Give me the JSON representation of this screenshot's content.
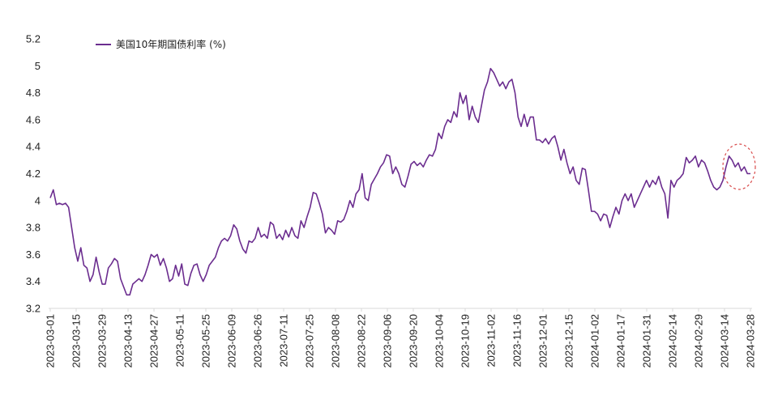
{
  "chart_data": {
    "type": "line",
    "title": "",
    "xlabel": "",
    "ylabel": "",
    "ylim": [
      3.2,
      5.2
    ],
    "y_ticks": [
      "5.2",
      "5",
      "4.8",
      "4.6",
      "4.4",
      "4.2",
      "4",
      "3.8",
      "3.6",
      "3.4",
      "3.2"
    ],
    "y_tick_values": [
      5.2,
      5.0,
      4.8,
      4.6,
      4.4,
      4.2,
      4.0,
      3.8,
      3.6,
      3.4,
      3.2
    ],
    "x_tick_labels": [
      "2023-03-01",
      "2023-03-15",
      "2023-03-29",
      "2023-04-13",
      "2023-04-27",
      "2023-05-11",
      "2023-05-25",
      "2023-06-09",
      "2023-06-26",
      "2023-07-11",
      "2023-07-25",
      "2023-08-08",
      "2023-08-22",
      "2023-09-06",
      "2023-09-20",
      "2023-10-04",
      "2023-10-19",
      "2023-11-02",
      "2023-11-16",
      "2023-12-01",
      "2023-12-15",
      "2024-01-02",
      "2024-01-17",
      "2024-01-31",
      "2024-02-14",
      "2024-02-29",
      "2024-03-14",
      "2024-03-28"
    ],
    "legend": {
      "position": "top-left",
      "label": "美国10年期国债利率 (%)"
    },
    "grid": false,
    "series": [
      {
        "name": "美国10年期国债利率 (%)",
        "color": "#6b2d8f",
        "values": [
          4.02,
          4.08,
          3.97,
          3.98,
          3.97,
          3.98,
          3.95,
          3.8,
          3.65,
          3.55,
          3.65,
          3.52,
          3.5,
          3.4,
          3.45,
          3.58,
          3.47,
          3.38,
          3.38,
          3.5,
          3.53,
          3.57,
          3.55,
          3.42,
          3.36,
          3.3,
          3.3,
          3.38,
          3.4,
          3.42,
          3.4,
          3.45,
          3.52,
          3.6,
          3.58,
          3.6,
          3.52,
          3.57,
          3.5,
          3.4,
          3.42,
          3.52,
          3.44,
          3.53,
          3.38,
          3.37,
          3.46,
          3.52,
          3.53,
          3.45,
          3.4,
          3.45,
          3.52,
          3.55,
          3.58,
          3.65,
          3.7,
          3.72,
          3.7,
          3.74,
          3.82,
          3.79,
          3.7,
          3.64,
          3.61,
          3.7,
          3.69,
          3.72,
          3.8,
          3.73,
          3.75,
          3.72,
          3.84,
          3.82,
          3.72,
          3.75,
          3.71,
          3.78,
          3.73,
          3.8,
          3.74,
          3.72,
          3.85,
          3.8,
          3.88,
          3.95,
          4.06,
          4.05,
          3.98,
          3.9,
          3.76,
          3.8,
          3.78,
          3.75,
          3.85,
          3.84,
          3.86,
          3.92,
          4.0,
          3.95,
          4.05,
          4.08,
          4.2,
          4.02,
          4.0,
          4.12,
          4.16,
          4.2,
          4.25,
          4.28,
          4.34,
          4.33,
          4.2,
          4.25,
          4.2,
          4.12,
          4.1,
          4.18,
          4.27,
          4.29,
          4.26,
          4.28,
          4.25,
          4.3,
          4.34,
          4.33,
          4.38,
          4.5,
          4.46,
          4.55,
          4.6,
          4.58,
          4.66,
          4.62,
          4.8,
          4.72,
          4.78,
          4.6,
          4.7,
          4.62,
          4.58,
          4.7,
          4.82,
          4.88,
          4.98,
          4.95,
          4.9,
          4.85,
          4.88,
          4.83,
          4.88,
          4.9,
          4.8,
          4.62,
          4.55,
          4.64,
          4.55,
          4.62,
          4.62,
          4.45,
          4.45,
          4.43,
          4.46,
          4.42,
          4.46,
          4.48,
          4.4,
          4.3,
          4.38,
          4.28,
          4.2,
          4.25,
          4.15,
          4.12,
          4.24,
          4.23,
          4.08,
          3.92,
          3.92,
          3.9,
          3.85,
          3.9,
          3.89,
          3.8,
          3.88,
          3.95,
          3.9,
          4.0,
          4.05,
          4.0,
          4.05,
          3.95,
          4.0,
          4.05,
          4.1,
          4.15,
          4.1,
          4.15,
          4.12,
          4.18,
          4.1,
          4.05,
          3.87,
          4.15,
          4.1,
          4.15,
          4.17,
          4.2,
          4.32,
          4.28,
          4.3,
          4.33,
          4.25,
          4.3,
          4.28,
          4.22,
          4.15,
          4.1,
          4.08,
          4.1,
          4.15,
          4.25,
          4.33,
          4.3,
          4.25,
          4.28,
          4.22,
          4.25,
          4.2,
          4.2
        ]
      }
    ],
    "annotations": [
      {
        "type": "dashed-ellipse",
        "color": "#d94c4c",
        "target": "latest values, 2024-03-14 to 2024-03-28"
      }
    ]
  }
}
